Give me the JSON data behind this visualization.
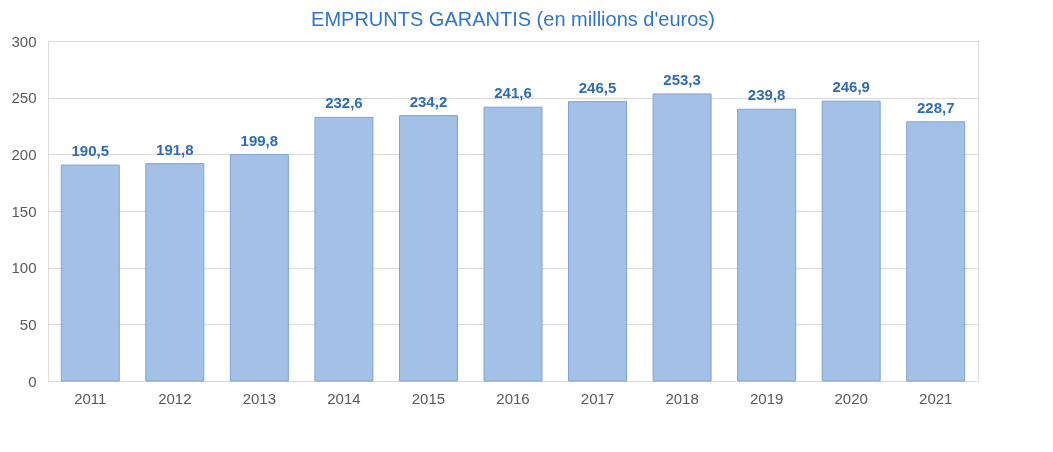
{
  "chart_data": {
    "type": "bar",
    "title": "EMPRUNTS GARANTIS (en millions d'euros)",
    "categories": [
      "2011",
      "2012",
      "2013",
      "2014",
      "2015",
      "2016",
      "2017",
      "2018",
      "2019",
      "2020",
      "2021"
    ],
    "values": [
      190.5,
      191.8,
      199.8,
      232.6,
      234.2,
      241.6,
      246.5,
      253.3,
      239.8,
      246.9,
      228.7
    ],
    "value_labels": [
      "190,5",
      "191,8",
      "199,8",
      "232,6",
      "234,2",
      "241,6",
      "246,5",
      "253,3",
      "239,8",
      "246,9",
      "228,7"
    ],
    "color": "#a3c0e6",
    "ylim": [
      0,
      300
    ],
    "yticks": [
      0,
      50,
      100,
      150,
      200,
      250,
      300
    ],
    "grid": "y"
  }
}
